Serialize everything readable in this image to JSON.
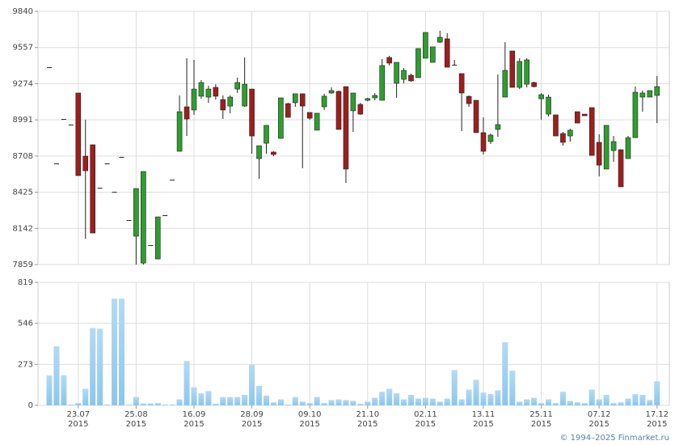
{
  "chart_data": [
    {
      "type": "candlestick",
      "up_color": "#2e9e2e",
      "down_color": "#9e1e1e",
      "grid": true,
      "ylim": [
        7859,
        9840
      ],
      "yticks": [
        9840,
        9557,
        9274,
        8991,
        8708,
        8425,
        8142,
        7859
      ],
      "open": [
        9403,
        8650,
        8998,
        8954,
        9201,
        8707,
        8796,
        8460,
        8650,
        8428,
        8701,
        8207,
        8081,
        7871,
        8011,
        7903,
        8245,
        8523,
        8745,
        9093,
        9068,
        9176,
        9169,
        9245,
        9150,
        9099,
        9232,
        9099,
        9232,
        8688,
        8808,
        8739,
        8846,
        9118,
        9125,
        9195,
        9049,
        8910,
        9093,
        9201,
        9214,
        9251,
        9062,
        9112,
        9144,
        9163,
        9144,
        9479,
        9277,
        9308,
        9340,
        9321,
        9473,
        9441,
        9599,
        9625,
        9422,
        9353,
        9175,
        9144,
        8891,
        8821,
        8916,
        9169,
        9530,
        9245,
        9270,
        9283,
        9156,
        9036,
        9030,
        8884,
        8865,
        9055,
        9036,
        9087,
        8815,
        8606,
        8751,
        8758,
        8688,
        8852,
        9169,
        9169,
        9182
      ],
      "high": [
        9403,
        8650,
        8998,
        8954,
        9201,
        8992,
        8796,
        8460,
        8650,
        8428,
        8701,
        8207,
        8454,
        8587,
        8011,
        8232,
        8245,
        8523,
        9182,
        9473,
        9460,
        9302,
        9258,
        9270,
        9182,
        9182,
        9321,
        9479,
        9232,
        8789,
        8948,
        8745,
        9163,
        9125,
        9195,
        9195,
        9049,
        9043,
        9195,
        9245,
        9220,
        9251,
        9201,
        9125,
        9163,
        9201,
        9467,
        9492,
        9441,
        9397,
        9353,
        9549,
        9675,
        9562,
        9688,
        9669,
        9460,
        9353,
        9182,
        9144,
        9011,
        8884,
        9346,
        9599,
        9530,
        9473,
        9473,
        9289,
        9201,
        9188,
        9030,
        8897,
        8922,
        9055,
        9036,
        9087,
        8878,
        8948,
        8865,
        8758,
        8865,
        9251,
        9220,
        9220,
        9334
      ],
      "low": [
        9403,
        8650,
        8998,
        8954,
        8555,
        8061,
        8106,
        8460,
        8650,
        8428,
        8701,
        8207,
        7859,
        7859,
        8011,
        7903,
        8245,
        8523,
        8745,
        8865,
        9030,
        9156,
        9125,
        9150,
        8998,
        9043,
        9201,
        9093,
        8726,
        8530,
        8726,
        8707,
        8846,
        9011,
        9093,
        8612,
        8992,
        8910,
        9068,
        9195,
        8916,
        8498,
        8897,
        9030,
        9137,
        9144,
        9144,
        9416,
        9163,
        9277,
        9289,
        9321,
        9473,
        9441,
        9593,
        9403,
        9416,
        8903,
        9093,
        8891,
        8720,
        8802,
        8859,
        9169,
        9245,
        9232,
        9245,
        9245,
        8992,
        9017,
        8865,
        8789,
        8821,
        8966,
        9023,
        8713,
        8549,
        8606,
        8663,
        8467,
        8688,
        8852,
        9055,
        9169,
        8966
      ],
      "close": [
        9403,
        8650,
        8998,
        8954,
        8555,
        8593,
        8106,
        8460,
        8650,
        8428,
        8701,
        8207,
        8454,
        8587,
        8011,
        8232,
        8245,
        8523,
        9055,
        8998,
        9232,
        9283,
        9232,
        9176,
        9068,
        9169,
        9283,
        9270,
        8865,
        8789,
        8948,
        8720,
        9163,
        9011,
        9195,
        9099,
        9004,
        9043,
        9176,
        9220,
        8916,
        8606,
        9201,
        9036,
        9157,
        9182,
        9416,
        9435,
        9441,
        9378,
        9296,
        9549,
        9675,
        9562,
        9637,
        9403,
        9422,
        9201,
        9118,
        8891,
        8745,
        8872,
        8954,
        9378,
        9245,
        9448,
        9460,
        9251,
        9188,
        9169,
        8865,
        8815,
        8910,
        8966,
        9023,
        8713,
        8637,
        8948,
        8821,
        8467,
        8852,
        9207,
        9201,
        9220,
        9251
      ]
    },
    {
      "type": "bar",
      "color": "#8cc6ee",
      "grid": true,
      "ylim": [
        0,
        819
      ],
      "yticks": [
        819,
        546,
        273,
        0
      ],
      "categories": [
        null,
        null,
        null,
        null,
        "23.07 2015",
        null,
        null,
        null,
        null,
        null,
        null,
        null,
        "25.08 2015",
        null,
        null,
        null,
        null,
        null,
        null,
        null,
        "16.09 2015",
        null,
        null,
        null,
        null,
        null,
        null,
        null,
        "28.09 2015",
        null,
        null,
        null,
        null,
        null,
        null,
        null,
        "09.10 2015",
        null,
        null,
        null,
        null,
        null,
        null,
        null,
        "21.10 2015",
        null,
        null,
        null,
        null,
        null,
        null,
        null,
        "02.11 2015",
        null,
        null,
        null,
        null,
        null,
        null,
        null,
        "13.11 2015",
        null,
        null,
        null,
        null,
        null,
        null,
        null,
        "25.11 2015",
        null,
        null,
        null,
        null,
        null,
        null,
        null,
        "07.12 2015",
        null,
        null,
        null,
        null,
        null,
        null,
        null,
        "17.12 2015"
      ],
      "values": [
        199,
        393,
        200,
        5,
        15,
        110,
        515,
        510,
        5,
        710,
        710,
        5,
        55,
        12,
        12,
        15,
        5,
        5,
        40,
        295,
        120,
        80,
        95,
        10,
        55,
        55,
        55,
        70,
        270,
        130,
        65,
        20,
        40,
        5,
        55,
        25,
        15,
        55,
        15,
        35,
        40,
        35,
        30,
        10,
        25,
        50,
        90,
        110,
        80,
        40,
        70,
        45,
        50,
        45,
        25,
        45,
        235,
        40,
        105,
        170,
        85,
        75,
        100,
        420,
        230,
        25,
        40,
        50,
        15,
        40,
        15,
        90,
        30,
        20,
        15,
        105,
        40,
        70,
        15,
        20,
        45,
        75,
        70,
        35,
        160
      ]
    }
  ],
  "footer": "© 1994–2025 Finmarket.ru"
}
